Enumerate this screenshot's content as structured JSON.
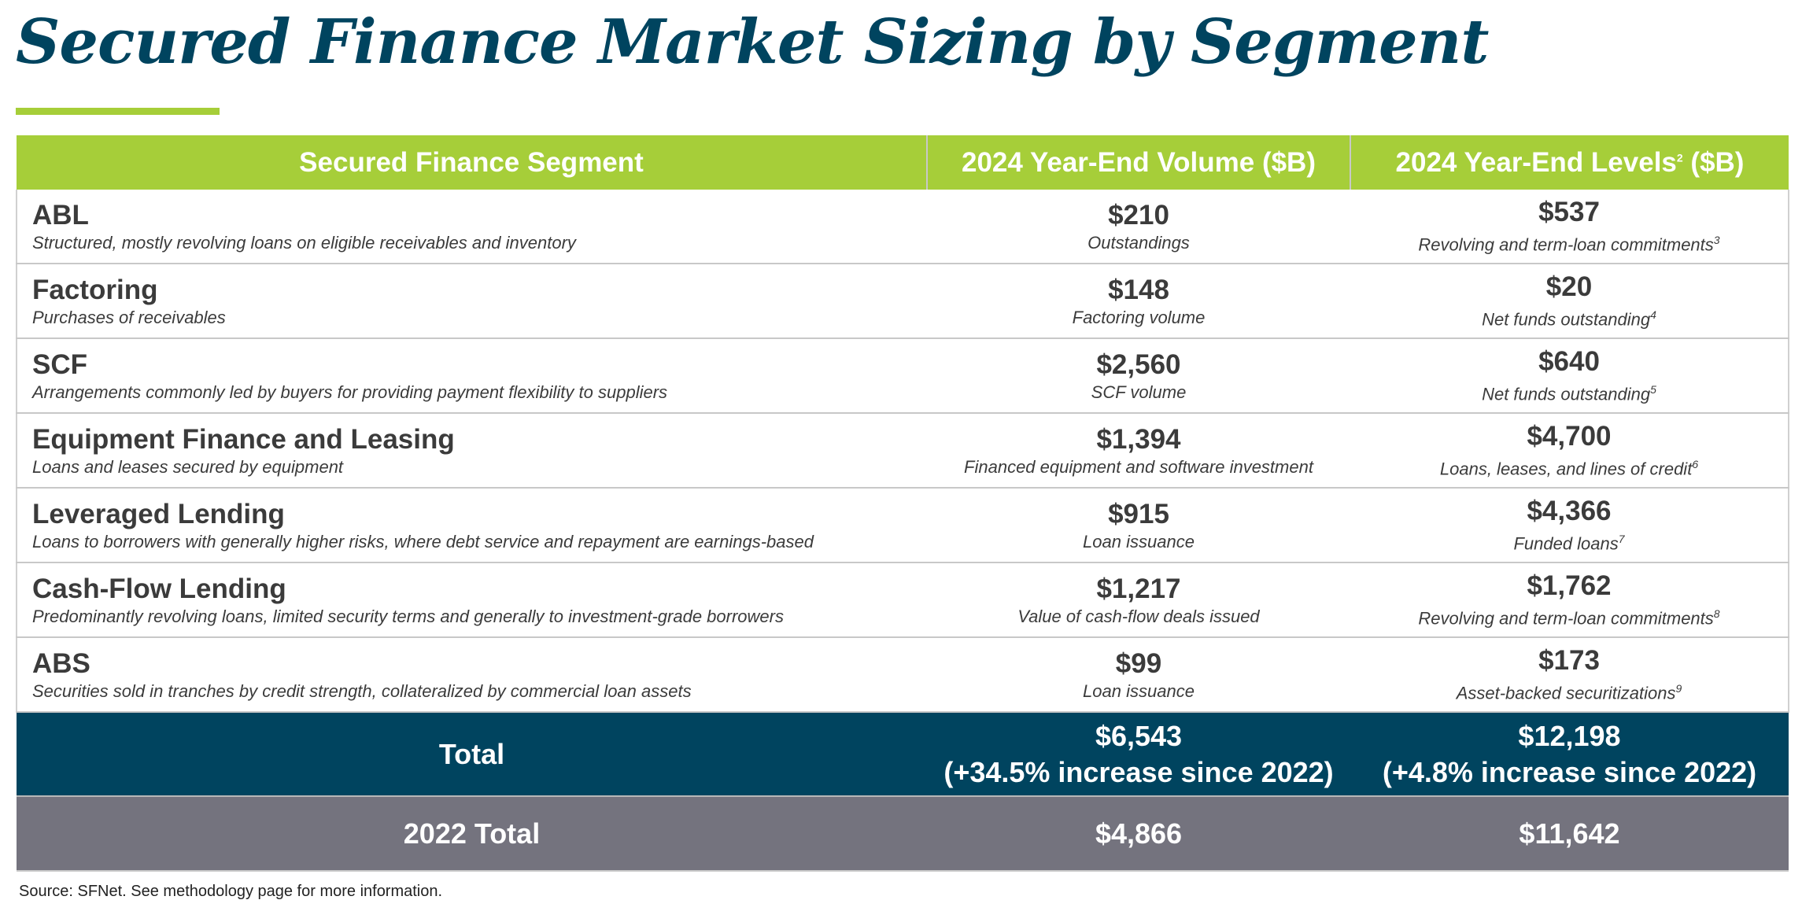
{
  "title": "Secured Finance Market Sizing by Segment",
  "colors": {
    "title": "#00445f",
    "accent": "#a6ce39",
    "total_row": "#00445f",
    "prior_total_row": "#74737e"
  },
  "table": {
    "headers": {
      "segment": "Secured Finance Segment",
      "volume": "2024 Year-End Volume ($B)",
      "levels_pre": "2024 Year-End Levels",
      "levels_sup": "2",
      "levels_post": " ($B)"
    },
    "rows": [
      {
        "name": "ABL",
        "desc": "Structured, mostly revolving loans on eligible receivables and inventory",
        "volume": "$210",
        "volume_note": "Outstandings",
        "level": "$537",
        "level_note": "Revolving and term-loan commitments",
        "level_sup": "3"
      },
      {
        "name": "Factoring",
        "desc": "Purchases of receivables",
        "volume": "$148",
        "volume_note": "Factoring volume",
        "level": "$20",
        "level_note": "Net funds outstanding",
        "level_sup": "4"
      },
      {
        "name": "SCF",
        "desc": "Arrangements commonly led by buyers for providing payment flexibility to suppliers",
        "volume": "$2,560",
        "volume_note": "SCF volume",
        "level": "$640",
        "level_note": "Net funds outstanding",
        "level_sup": "5"
      },
      {
        "name": "Equipment Finance and Leasing",
        "desc": "Loans and leases secured by equipment",
        "volume": "$1,394",
        "volume_note": "Financed equipment and software investment",
        "level": "$4,700",
        "level_note": "Loans, leases, and lines of credit",
        "level_sup": "6"
      },
      {
        "name": "Leveraged Lending",
        "desc": "Loans to borrowers with generally higher risks, where debt service and repayment are earnings-based",
        "volume": "$915",
        "volume_note": "Loan issuance",
        "level": "$4,366",
        "level_note": "Funded loans",
        "level_sup": "7"
      },
      {
        "name": "Cash-Flow Lending",
        "desc": "Predominantly revolving loans, limited security terms and generally to investment-grade borrowers",
        "volume": "$1,217",
        "volume_note": "Value of cash-flow deals issued",
        "level": "$1,762",
        "level_note": "Revolving and term-loan commitments",
        "level_sup": "8"
      },
      {
        "name": "ABS",
        "desc": "Securities sold in tranches by credit strength, collateralized by commercial loan assets",
        "volume": "$99",
        "volume_note": "Loan issuance",
        "level": "$173",
        "level_note": "Asset-backed securitizations",
        "level_sup": "9"
      }
    ],
    "total": {
      "label": "Total",
      "volume": "$6,543",
      "volume_change": "(+34.5% increase since 2022)",
      "level": "$12,198",
      "level_change": "(+4.8% increase since 2022)"
    },
    "prior_total": {
      "label": "2022 Total",
      "volume": "$4,866",
      "level": "$11,642"
    }
  },
  "source": "Source: SFNet. See methodology page for more information."
}
